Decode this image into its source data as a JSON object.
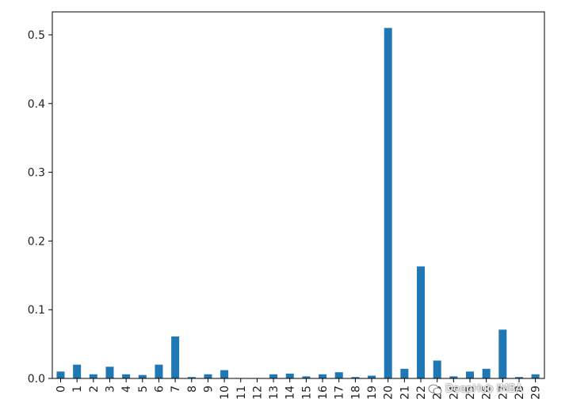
{
  "chart_data": {
    "type": "bar",
    "title": "",
    "xlabel": "",
    "ylabel": "",
    "ylim": [
      0,
      0.535
    ],
    "yticks": [
      0.0,
      0.1,
      0.2,
      0.3,
      0.4,
      0.5
    ],
    "ytick_labels": [
      "0.0",
      "0.1",
      "0.2",
      "0.3",
      "0.4",
      "0.5"
    ],
    "grid": false,
    "legend": "none",
    "bar_color": "#1f77b4",
    "categories": [
      "0",
      "1",
      "2",
      "3",
      "4",
      "5",
      "6",
      "7",
      "8",
      "9",
      "10",
      "11",
      "12",
      "13",
      "14",
      "15",
      "16",
      "17",
      "18",
      "19",
      "20",
      "21",
      "22",
      "23",
      "24",
      "25",
      "26",
      "27",
      "28",
      "29"
    ],
    "category_labels": [
      "0",
      "1",
      "2",
      "3",
      "4",
      "5",
      "6",
      "7",
      "8",
      "9",
      "10",
      "11",
      "12",
      "13",
      "14",
      "15",
      "16",
      "17",
      "18",
      "19",
      "20",
      "21",
      "22",
      "23",
      "24",
      "25",
      "26",
      "27",
      "28",
      "29"
    ],
    "values": [
      0.01,
      0.02,
      0.006,
      0.017,
      0.006,
      0.005,
      0.02,
      0.061,
      0.002,
      0.006,
      0.012,
      0.0,
      0.0,
      0.006,
      0.007,
      0.003,
      0.006,
      0.009,
      0.002,
      0.004,
      0.51,
      0.014,
      0.163,
      0.026,
      0.003,
      0.01,
      0.014,
      0.071,
      0.002,
      0.006
    ]
  },
  "watermark": {
    "text": "DeepHub IMBA",
    "icon": "wechat-icon"
  }
}
